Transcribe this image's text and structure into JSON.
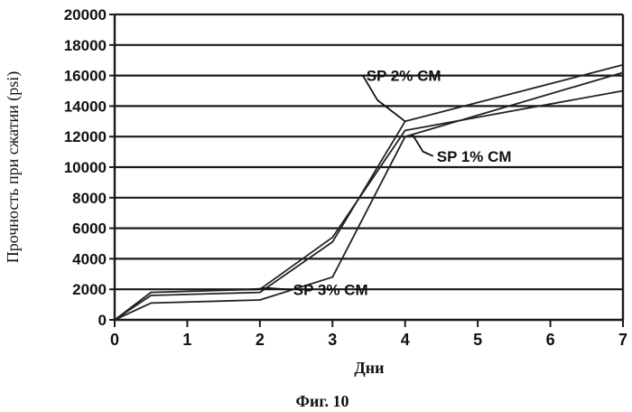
{
  "figure_caption": "Фиг. 10",
  "chart_data": {
    "type": "line",
    "xlabel": "Дни",
    "ylabel": "Прочность при сжатии (psi)",
    "xlim": [
      0,
      7
    ],
    "ylim": [
      0,
      20000
    ],
    "x_ticks": [
      0,
      1,
      2,
      3,
      4,
      5,
      6,
      7
    ],
    "y_ticks": [
      0,
      2000,
      4000,
      6000,
      8000,
      10000,
      12000,
      14000,
      16000,
      18000,
      20000
    ],
    "grid": "horizontal",
    "series": [
      {
        "name": "SP 1% CM",
        "color": "#222222",
        "points": [
          [
            0,
            0
          ],
          [
            0.5,
            1100
          ],
          [
            2,
            1300
          ],
          [
            3,
            2800
          ],
          [
            4,
            12000
          ],
          [
            7,
            16200
          ]
        ]
      },
      {
        "name": "SP 2% CM",
        "color": "#222222",
        "points": [
          [
            0,
            0
          ],
          [
            0.5,
            1600
          ],
          [
            2,
            1800
          ],
          [
            3,
            5100
          ],
          [
            4,
            13000
          ],
          [
            7,
            16700
          ]
        ]
      },
      {
        "name": "SP 3% CM",
        "color": "#222222",
        "points": [
          [
            0,
            0
          ],
          [
            0.5,
            1800
          ],
          [
            2,
            2000
          ],
          [
            3,
            5400
          ],
          [
            4,
            12400
          ],
          [
            7,
            15000
          ]
        ]
      }
    ],
    "annotations": [
      {
        "text": "SP 2% CM",
        "series": "SP 2% CM",
        "at_x": 4.0
      },
      {
        "text": "SP 1% CM",
        "series": "SP 1% CM",
        "at_x": 4.1
      },
      {
        "text": "SP 3% CM",
        "series": "SP 3% CM",
        "at_x": 1.85
      }
    ]
  }
}
